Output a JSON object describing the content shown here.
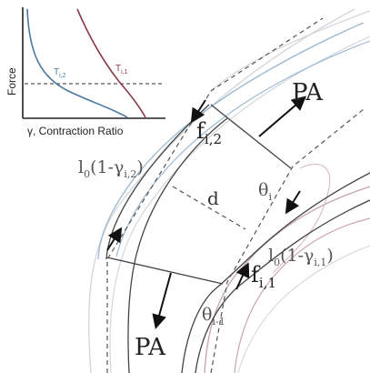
{
  "inset": {
    "y_axis_label": "Force",
    "x_axis_symbol": "γ",
    "x_axis_label": ", Contraction Ratio",
    "curve_left": {
      "label": "T",
      "subscript": "i,2",
      "color": "#4a77a0"
    },
    "curve_right": {
      "label": "T",
      "subscript": "i,1",
      "color": "#8b3a48"
    }
  },
  "labels": {
    "pa_top": "PA",
    "pa_bottom": "PA",
    "f_top": {
      "base": "f",
      "subscript": "i,2"
    },
    "f_bottom": {
      "base": "f",
      "subscript": "i,1"
    },
    "length_top": {
      "prefix": "l",
      "zero": "0",
      "middle": "(1-γ",
      "subscript": "i,2",
      "suffix": ")"
    },
    "length_bottom": {
      "prefix": "l",
      "zero": "0",
      "middle": "(1-γ",
      "subscript": "i,1",
      "suffix": ")"
    },
    "distance": "d",
    "theta_top": {
      "base": "θ",
      "subscript": "i"
    },
    "theta_bottom": {
      "base": "θ",
      "subscript": "i-1"
    }
  },
  "colors": {
    "muscle_blue": "#9fbad2",
    "muscle_red": "#c9a7ae",
    "outline_gray": "#c8cdd2",
    "ink": "#222222"
  }
}
